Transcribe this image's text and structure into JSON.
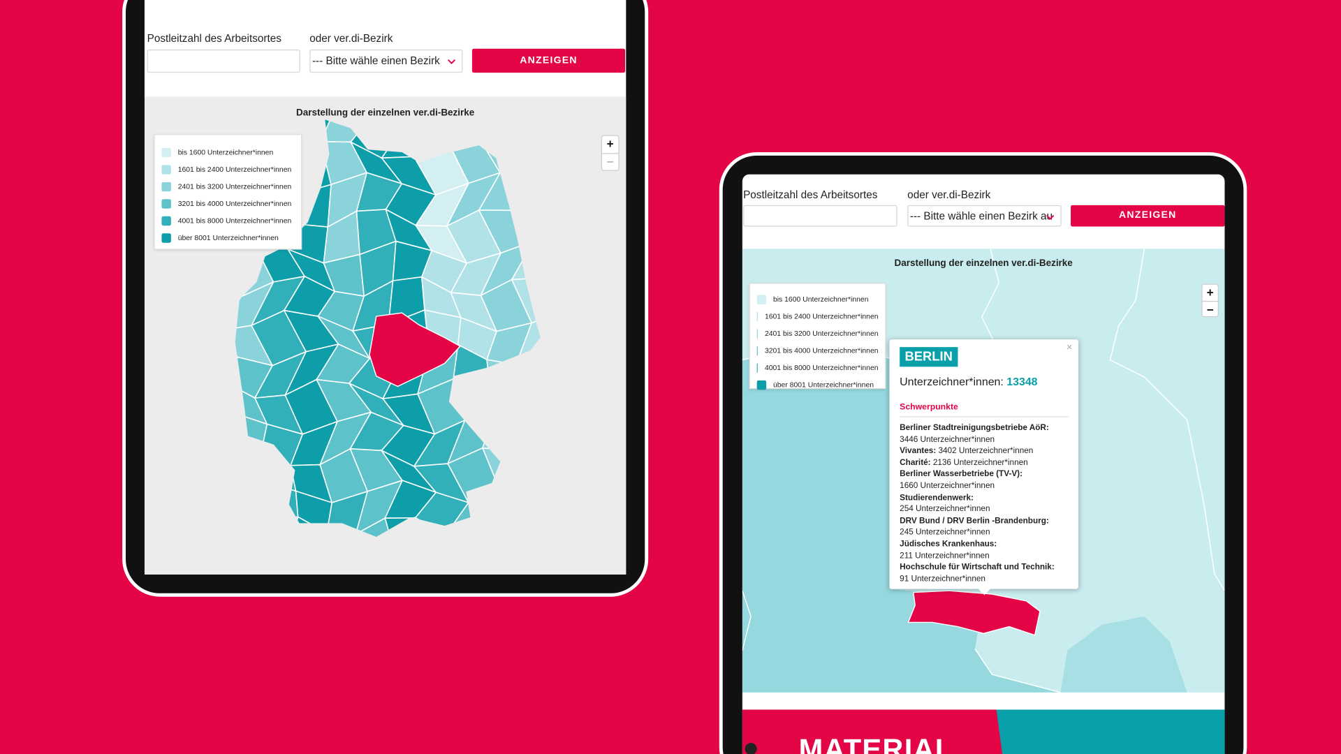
{
  "left_tablet": {
    "form": {
      "postcode_label": "Postleitzahl des Arbeitsortes",
      "district_label": "oder ver.di-Bezirk",
      "district_select": "--- Bitte wähle einen Bezirk",
      "button": "ANZEIGEN"
    },
    "map": {
      "title": "Darstellung der einzelnen ver.di-Bezirke",
      "zoom_in": "+",
      "zoom_out": "−",
      "legend": [
        {
          "label": "bis 1600 Unterzeichner*innen",
          "color": "#d4eff2"
        },
        {
          "label": "1601 bis 2400 Unterzeichner*innen",
          "color": "#b0e2e7"
        },
        {
          "label": "2401 bis 3200 Unterzeichner*innen",
          "color": "#8ad3da"
        },
        {
          "label": "3201 bis 4000 Unterzeichner*innen",
          "color": "#5ec2cb"
        },
        {
          "label": "4001 bis 8000 Unterzeichner*innen",
          "color": "#31b0ba"
        },
        {
          "label": "über 8001 Unterzeichner*innen",
          "color": "#0d9ea9"
        }
      ]
    }
  },
  "right_tablet": {
    "form": {
      "postcode_label": "Postleitzahl des Arbeitsortes",
      "district_label": "oder ver.di-Bezirk",
      "district_select": "--- Bitte wähle einen Bezirk au",
      "button": "ANZEIGEN"
    },
    "map": {
      "title": "Darstellung der einzelnen ver.di-Bezirke",
      "zoom_in": "+",
      "zoom_out": "−",
      "legend": [
        {
          "label": "bis 1600 Unterzeichner*innen",
          "color": "#d4eff2"
        },
        {
          "label": "1601 bis 2400 Unterzeichner*innen",
          "color": "#b0e2e7"
        },
        {
          "label": "2401 bis 3200 Unterzeichner*innen",
          "color": "#8ad3da"
        },
        {
          "label": "3201 bis 4000 Unterzeichner*innen",
          "color": "#5ec2cb"
        },
        {
          "label": "4001 bis 8000 Unterzeichner*innen",
          "color": "#31b0ba"
        },
        {
          "label": "über 8001 Unterzeichner*innen",
          "color": "#0d9ea9"
        }
      ]
    },
    "popup": {
      "close": "×",
      "title": "BERLIN",
      "count_label": "Unterzeichner*innen:",
      "count": 13348,
      "section": "Schwerpunkte",
      "entries": [
        {
          "name": "Berliner Stadtreinigungsbetriebe AöR:",
          "count": "3446 Unterzeichner*innen"
        },
        {
          "name": "Vivantes:",
          "count": "3402 Unterzeichner*innen"
        },
        {
          "name": "Charité:",
          "count": "2136 Unterzeichner*innen"
        },
        {
          "name": "Berliner Wasserbetriebe (TV-V):",
          "count": "1660 Unterzeichner*innen"
        },
        {
          "name": "Studierendenwerk:",
          "count": "254 Unterzeichner*innen"
        },
        {
          "name": "DRV Bund / DRV Berlin -Brandenburg:",
          "count": "245 Unterzeichner*innen"
        },
        {
          "name": "Jüdisches Krankenhaus:",
          "count": "211 Unterzeichner*innen"
        },
        {
          "name": "Hochschule für Wirtschaft und Technik:",
          "count": "91 Unterzeichner*innen"
        }
      ]
    },
    "banner": "MATERIAL"
  }
}
